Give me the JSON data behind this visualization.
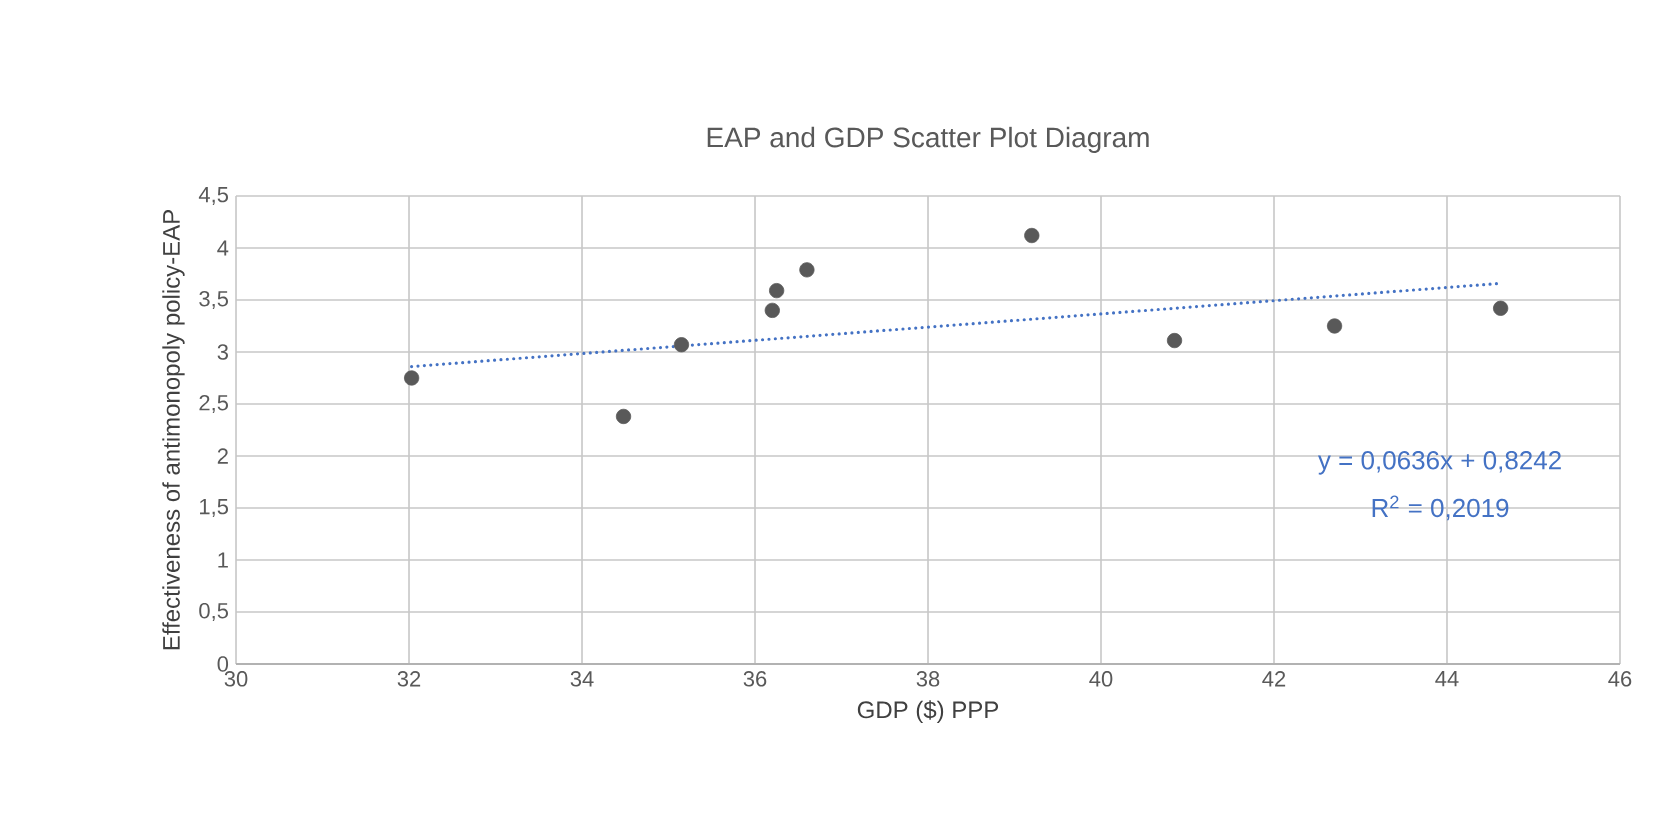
{
  "chart_data": {
    "type": "scatter",
    "title": "EAP and GDP Scatter Plot Diagram",
    "xlabel": "GDP ($) PPP",
    "ylabel": "Effectiveness of antimonopoly policy-EAP",
    "series": [
      {
        "color": "#595959",
        "marker": "circle",
        "x": [
          32.03,
          34.48,
          35.15,
          36.2,
          36.25,
          36.6,
          39.2,
          40.85,
          42.7,
          44.62
        ],
        "values": [
          2.75,
          2.38,
          3.07,
          3.4,
          3.59,
          3.79,
          4.12,
          3.11,
          3.25,
          3.42
        ]
      },
      {
        "type": "line",
        "color": "#4472c4",
        "line_style": "dotted",
        "marker": "none",
        "x": [
          32.03,
          44.62
        ],
        "values": [
          2.86,
          3.66
        ]
      }
    ],
    "xlim": [
      30,
      46
    ],
    "xticks": [
      30,
      32,
      34,
      36,
      38,
      40,
      42,
      44,
      46
    ],
    "ylim": [
      0,
      4.5
    ],
    "yticks": [
      0,
      {
        "value": 0.5,
        "label": "0,5"
      },
      1,
      {
        "value": 1.5,
        "label": "1,5"
      },
      2,
      {
        "value": 2.5,
        "label": "2,5"
      },
      3,
      {
        "value": 3.5,
        "label": "3,5"
      },
      4,
      {
        "value": 4.5,
        "label": "4,5"
      }
    ],
    "grid": true,
    "annotations": [
      "y = 0,0636x + 0,8242",
      "R$^{2}$ = 0,2019"
    ]
  }
}
